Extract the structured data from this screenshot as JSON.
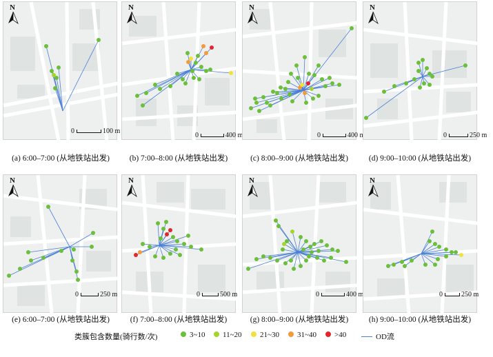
{
  "colors": {
    "od_line": "#4a7fd6",
    "c3_10": "#6bbf3a",
    "c11_20": "#a5d42a",
    "c21_30": "#f0e23c",
    "c31_40": "#f39a3a",
    "c40": "#e3262a",
    "map_bg": "#eef0ef",
    "road": "#ffffff",
    "block": "#dfe3e2"
  },
  "panels": [
    {
      "id": "a",
      "caption": "(a) 6:00–7:00 (从地铁站出发)",
      "scale_zero": "0",
      "scale_dist": "100 m",
      "north": "N",
      "hub": [
        86,
        158
      ],
      "dests": [
        [
          62,
          64,
          1
        ],
        [
          138,
          55,
          1
        ],
        [
          70,
          100,
          1
        ],
        [
          77,
          110,
          1
        ],
        [
          80,
          95,
          1
        ],
        [
          75,
          125,
          1
        ],
        [
          73,
          106,
          2
        ]
      ]
    },
    {
      "id": "b",
      "caption": "(b) 7:00–8:00 (从地铁站出发)",
      "scale_zero": "0",
      "scale_dist": "400 m",
      "north": "N",
      "hub": [
        100,
        98
      ],
      "dests": [
        [
          130,
          66,
          5
        ],
        [
          118,
          64,
          4
        ],
        [
          122,
          74,
          4
        ],
        [
          96,
          87,
          4
        ],
        [
          158,
          103,
          3
        ],
        [
          100,
          82,
          3
        ],
        [
          107,
          88,
          1
        ],
        [
          115,
          94,
          1
        ],
        [
          122,
          100,
          1
        ],
        [
          104,
          110,
          1
        ],
        [
          88,
          112,
          1
        ],
        [
          70,
          122,
          1
        ],
        [
          55,
          126,
          1
        ],
        [
          35,
          132,
          1
        ],
        [
          22,
          136,
          1
        ],
        [
          95,
          74,
          1
        ],
        [
          110,
          78,
          1
        ],
        [
          128,
          98,
          1
        ],
        [
          80,
          104,
          1
        ],
        [
          92,
          118,
          1
        ],
        [
          112,
          112,
          1
        ],
        [
          48,
          120,
          1
        ],
        [
          30,
          150,
          1
        ],
        [
          102,
          100,
          1
        ]
      ]
    },
    {
      "id": "c",
      "caption": "(c) 8:00–9:00 (从地铁站出发)",
      "scale_zero": "0",
      "scale_dist": "400 m",
      "north": "N",
      "hub": [
        88,
        128
      ],
      "dests": [
        [
          158,
          38,
          1
        ],
        [
          95,
          118,
          5
        ],
        [
          83,
          124,
          4
        ],
        [
          90,
          132,
          4
        ],
        [
          86,
          120,
          3
        ],
        [
          100,
          126,
          2
        ],
        [
          78,
          92,
          1
        ],
        [
          90,
          80,
          1
        ],
        [
          110,
          92,
          1
        ],
        [
          104,
          106,
          1
        ],
        [
          115,
          112,
          1
        ],
        [
          120,
          122,
          1
        ],
        [
          130,
          118,
          1
        ],
        [
          140,
          120,
          1
        ],
        [
          126,
          110,
          1
        ],
        [
          70,
          104,
          1
        ],
        [
          66,
          116,
          1
        ],
        [
          55,
          124,
          1
        ],
        [
          44,
          130,
          1
        ],
        [
          30,
          138,
          1
        ],
        [
          20,
          146,
          1
        ],
        [
          12,
          154,
          1
        ],
        [
          24,
          158,
          1
        ],
        [
          40,
          150,
          1
        ],
        [
          56,
          140,
          1
        ],
        [
          68,
          134,
          1
        ],
        [
          110,
          136,
          1
        ],
        [
          102,
          140,
          1
        ],
        [
          92,
          146,
          1
        ],
        [
          72,
          144,
          1
        ],
        [
          62,
          126,
          1
        ],
        [
          50,
          132,
          1
        ],
        [
          35,
          146,
          1
        ],
        [
          18,
          140,
          1
        ],
        [
          80,
          110,
          1
        ],
        [
          96,
          104,
          1
        ]
      ]
    },
    {
      "id": "d",
      "caption": "(d) 9:00–10:00 (从地铁站出发)",
      "scale_zero": "0",
      "scale_dist": "250 m",
      "north": "N",
      "hub": [
        86,
        108
      ],
      "dests": [
        [
          148,
          92,
          1
        ],
        [
          80,
          88,
          1
        ],
        [
          86,
          84,
          1
        ],
        [
          92,
          96,
          1
        ],
        [
          96,
          104,
          1
        ],
        [
          80,
          100,
          1
        ],
        [
          88,
          118,
          1
        ],
        [
          96,
          120,
          1
        ],
        [
          74,
          112,
          1
        ],
        [
          62,
          118,
          1
        ],
        [
          45,
          122,
          1
        ],
        [
          30,
          130,
          1
        ],
        [
          4,
          168,
          1
        ],
        [
          100,
          108,
          1
        ],
        [
          82,
          124,
          1
        ]
      ]
    },
    {
      "id": "e",
      "caption": "(e) 6:00–7:00 (从地铁站出发)",
      "scale_zero": "0",
      "scale_dist": "250 m",
      "north": "N",
      "hub": [
        96,
        104
      ],
      "dests": [
        [
          65,
          46,
          1
        ],
        [
          130,
          84,
          1
        ],
        [
          128,
          104,
          1
        ],
        [
          102,
          108,
          1
        ],
        [
          100,
          124,
          1
        ],
        [
          106,
          140,
          1
        ],
        [
          108,
          152,
          1
        ],
        [
          58,
          120,
          1
        ],
        [
          40,
          124,
          1
        ],
        [
          24,
          136,
          1
        ],
        [
          8,
          146,
          1
        ],
        [
          36,
          112,
          1
        ],
        [
          84,
          110,
          1
        ]
      ]
    },
    {
      "id": "f",
      "caption": "(f) 7:00–8:00 (从地铁站出发)",
      "scale_zero": "0",
      "scale_dist": "500 m",
      "north": "N",
      "hub": [
        54,
        102
      ],
      "dests": [
        [
          65,
          86,
          5
        ],
        [
          70,
          80,
          5
        ],
        [
          20,
          116,
          5
        ],
        [
          26,
          112,
          4
        ],
        [
          60,
          78,
          1
        ],
        [
          64,
          68,
          1
        ],
        [
          52,
          70,
          1
        ],
        [
          74,
          90,
          1
        ],
        [
          80,
          96,
          1
        ],
        [
          90,
          100,
          1
        ],
        [
          100,
          104,
          1
        ],
        [
          115,
          108,
          1
        ],
        [
          96,
          88,
          1
        ],
        [
          84,
          116,
          1
        ],
        [
          70,
          114,
          1
        ],
        [
          60,
          120,
          1
        ],
        [
          40,
          104,
          1
        ],
        [
          30,
          100,
          1
        ],
        [
          48,
          118,
          1
        ],
        [
          78,
          108,
          1
        ],
        [
          56,
          92,
          1
        ]
      ]
    },
    {
      "id": "g",
      "caption": "(g) 8:00–9:00 (从地铁站出发)",
      "scale_zero": "0",
      "scale_dist": "400 m",
      "north": "N",
      "hub": [
        80,
        112
      ],
      "dests": [
        [
          48,
          66,
          1
        ],
        [
          52,
          74,
          1
        ],
        [
          72,
          82,
          2
        ],
        [
          84,
          90,
          1
        ],
        [
          92,
          96,
          1
        ],
        [
          104,
          100,
          1
        ],
        [
          114,
          96,
          1
        ],
        [
          122,
          102,
          1
        ],
        [
          130,
          108,
          1
        ],
        [
          138,
          110,
          1
        ],
        [
          150,
          126,
          1
        ],
        [
          100,
          112,
          1
        ],
        [
          108,
          120,
          1
        ],
        [
          118,
          124,
          1
        ],
        [
          128,
          120,
          1
        ],
        [
          92,
          124,
          1
        ],
        [
          84,
          132,
          1
        ],
        [
          74,
          136,
          1
        ],
        [
          62,
          128,
          1
        ],
        [
          50,
          124,
          1
        ],
        [
          40,
          120,
          1
        ],
        [
          30,
          118,
          1
        ],
        [
          20,
          122,
          1
        ],
        [
          8,
          136,
          1
        ],
        [
          64,
          96,
          1
        ],
        [
          58,
          108,
          1
        ],
        [
          88,
          108,
          1
        ],
        [
          98,
          104,
          1
        ],
        [
          110,
          110,
          1
        ],
        [
          60,
          100,
          2
        ],
        [
          96,
          118,
          1
        ],
        [
          70,
          124,
          1
        ]
      ]
    },
    {
      "id": "h",
      "caption": "(h) 9:00–10:00 (从地铁站出发)",
      "scale_zero": "0",
      "scale_dist": "250 m",
      "north": "N",
      "hub": [
        84,
        114
      ],
      "dests": [
        [
          100,
          82,
          1
        ],
        [
          96,
          96,
          1
        ],
        [
          104,
          100,
          1
        ],
        [
          110,
          104,
          1
        ],
        [
          120,
          108,
          1
        ],
        [
          128,
          112,
          1
        ],
        [
          134,
          112,
          1
        ],
        [
          142,
          116,
          3
        ],
        [
          120,
          118,
          1
        ],
        [
          108,
          122,
          1
        ],
        [
          104,
          130,
          1
        ],
        [
          90,
          130,
          1
        ],
        [
          70,
          124,
          1
        ],
        [
          56,
          126,
          1
        ],
        [
          44,
          130,
          1
        ],
        [
          36,
          132,
          1
        ],
        [
          60,
          132,
          1
        ]
      ]
    }
  ],
  "legend": {
    "title": "类簇包含数量(骑行数/次)",
    "items": [
      {
        "label": "3~10",
        "color_key": "c3_10"
      },
      {
        "label": "11~20",
        "color_key": "c11_20"
      },
      {
        "label": "21~30",
        "color_key": "c21_30"
      },
      {
        "label": "31~40",
        "color_key": "c31_40"
      },
      {
        "label": ">40",
        "color_key": "c40"
      }
    ],
    "od_label": "OD流"
  }
}
